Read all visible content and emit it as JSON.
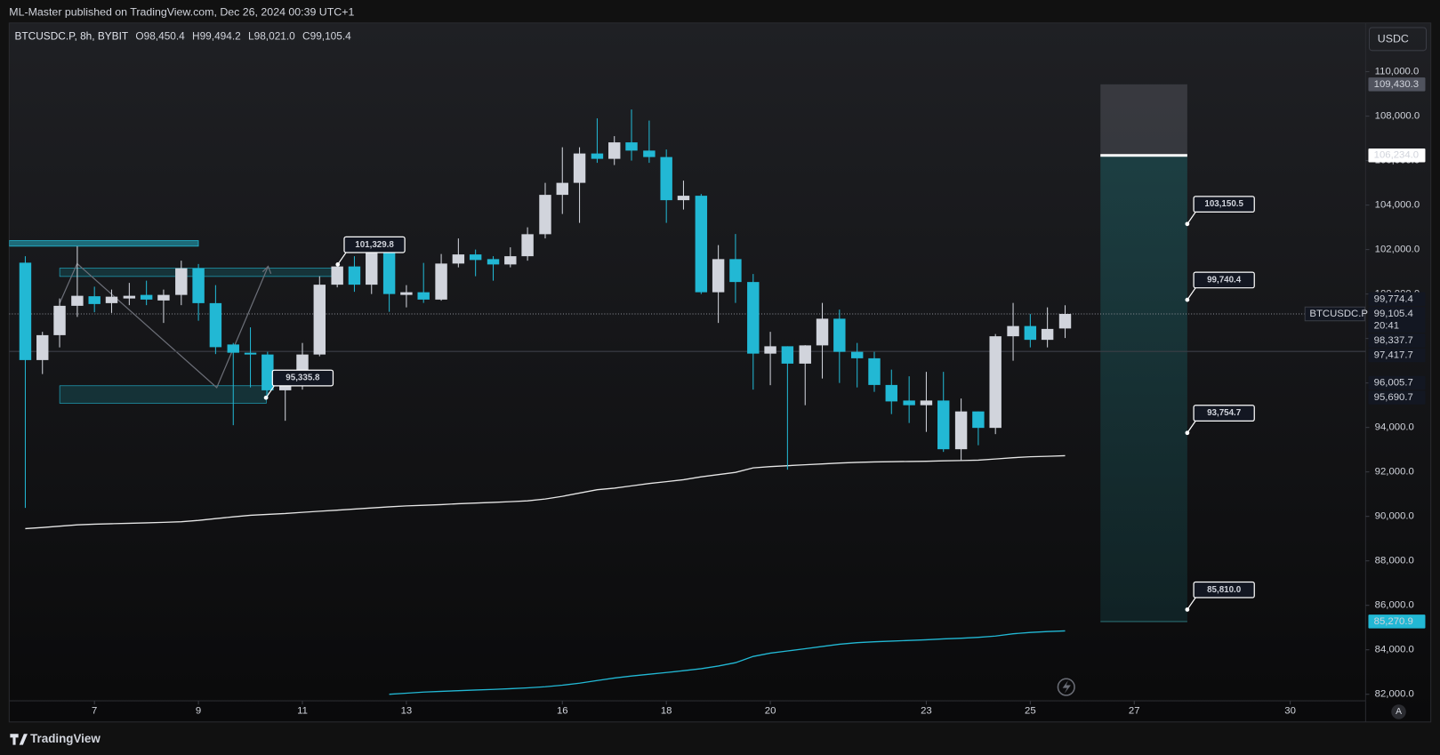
{
  "header": {
    "published": "ML-Master published on TradingView.com, Dec 26, 2024 00:39 UTC+1",
    "symbol": "BTCUSDC.P, 8h, BYBIT",
    "ohlc": [
      "O98,450.4",
      "H99,494.2",
      "L98,021.0",
      "C99,105.4"
    ]
  },
  "currency": "USDC",
  "footer": "TradingView",
  "auto_button": "A",
  "chart_data": {
    "type": "candlestick",
    "symbol_tag": "BTCUSDC.P",
    "up_color": "#d1d4dc",
    "down_color": "#22b8d4",
    "x": [
      5.67,
      6,
      6.33,
      6.67,
      7,
      7.33,
      7.67,
      8,
      8.33,
      8.67,
      9,
      9.33,
      9.67,
      10,
      10.33,
      10.67,
      11,
      11.33,
      11.67,
      12,
      12.33,
      12.67,
      13,
      13.33,
      13.67,
      14,
      14.33,
      14.67,
      15,
      15.33,
      15.67,
      16,
      16.33,
      16.67,
      17,
      17.33,
      17.67,
      18,
      18.33,
      18.67,
      19,
      19.33,
      19.67,
      20,
      20.33,
      20.67,
      21,
      21.33,
      21.67,
      22,
      22.33,
      22.67,
      23,
      23.33,
      23.67,
      24,
      24.33,
      24.67,
      25,
      25.33,
      25.67
    ],
    "open": [
      101409,
      97030,
      98150,
      99470,
      99900,
      99590,
      99800,
      99960,
      99710,
      99960,
      101160,
      99590,
      97730,
      97360,
      97280,
      95670,
      96080,
      97280,
      100420,
      101240,
      100420,
      101860,
      99960,
      100080,
      99750,
      101370,
      101780,
      101570,
      101330,
      101700,
      102690,
      104460,
      105000,
      106320,
      106080,
      106820,
      106450,
      106160,
      104220,
      104420,
      100080,
      101570,
      100540,
      97320,
      97650,
      96870,
      97690,
      98890,
      97400,
      97110,
      95910,
      95210,
      95000,
      95210,
      93020,
      94720,
      93980,
      98100,
      98560,
      97940,
      98450.4
    ],
    "high": [
      101700,
      98300,
      99800,
      102150,
      100330,
      100200,
      100500,
      100600,
      100200,
      101500,
      101350,
      100400,
      97800,
      98500,
      97400,
      96300,
      97800,
      100800,
      101330,
      101700,
      102300,
      102200,
      100400,
      101400,
      101800,
      102500,
      102000,
      101700,
      102100,
      103000,
      105000,
      106600,
      106600,
      107900,
      107100,
      108300,
      107800,
      106500,
      105100,
      104500,
      102200,
      102700,
      100900,
      98300,
      97650,
      97700,
      99600,
      99300,
      97800,
      97400,
      96600,
      96300,
      96500,
      96500,
      95300,
      94720,
      98200,
      99600,
      99100,
      99400,
      99494.2
    ],
    "low": [
      90380,
      96400,
      97600,
      98970,
      99180,
      99150,
      99500,
      99500,
      98700,
      99500,
      98800,
      97300,
      94100,
      95800,
      95300,
      94300,
      95700,
      97200,
      100300,
      100100,
      100000,
      99200,
      99400,
      99600,
      99700,
      101200,
      100800,
      100600,
      101200,
      101500,
      102500,
      103600,
      103200,
      105900,
      105800,
      106000,
      105900,
      103200,
      103800,
      100000,
      98700,
      99600,
      95700,
      95900,
      92100,
      95000,
      96200,
      96000,
      95800,
      95600,
      94600,
      94200,
      93800,
      92900,
      92500,
      93200,
      93700,
      97000,
      97600,
      97600,
      98021.0
    ],
    "close": [
      97030,
      98150,
      99470,
      99920,
      99550,
      99880,
      99920,
      99750,
      99960,
      101160,
      99590,
      97610,
      97360,
      97280,
      95670,
      96080,
      97280,
      100420,
      101240,
      100420,
      101860,
      100000,
      100080,
      99750,
      101370,
      101780,
      101530,
      101330,
      101700,
      102690,
      104460,
      105000,
      106320,
      106080,
      106820,
      106450,
      106160,
      104220,
      104420,
      100080,
      101570,
      100540,
      97320,
      97650,
      96870,
      97690,
      98890,
      97400,
      97110,
      95910,
      95170,
      95000,
      95210,
      93020,
      94720,
      93980,
      98100,
      98560,
      97940,
      98430,
      99105.4
    ],
    "lines": [
      {
        "color": "#e6e6e6",
        "values": [
          89450,
          89500,
          89560,
          89620,
          89650,
          89670,
          89690,
          89710,
          89730,
          89760,
          89820,
          89900,
          89980,
          90050,
          90090,
          90130,
          90180,
          90230,
          90280,
          90330,
          90380,
          90430,
          90470,
          90500,
          90530,
          90570,
          90600,
          90630,
          90660,
          90700,
          90780,
          90900,
          91050,
          91200,
          91270,
          91370,
          91480,
          91560,
          91650,
          91780,
          91880,
          91980,
          92180,
          92240,
          92280,
          92320,
          92360,
          92400,
          92430,
          92450,
          92460,
          92470,
          92480,
          92500,
          92510,
          92530,
          92580,
          92640,
          92680,
          92700,
          92730
        ]
      },
      {
        "color": "#22b8d4",
        "values": [
          null,
          null,
          null,
          null,
          null,
          null,
          null,
          null,
          null,
          null,
          null,
          null,
          null,
          null,
          null,
          null,
          null,
          null,
          null,
          null,
          null,
          82000,
          82050,
          82100,
          82130,
          82160,
          82190,
          82220,
          82250,
          82290,
          82340,
          82410,
          82500,
          82620,
          82730,
          82820,
          82900,
          82980,
          83060,
          83150,
          83270,
          83420,
          83700,
          83850,
          83950,
          84050,
          84150,
          84250,
          84320,
          84360,
          84390,
          84420,
          84450,
          84490,
          84520,
          84560,
          84620,
          84720,
          84780,
          84820,
          84850
        ]
      }
    ],
    "xlim": [
      5.36,
      31.45
    ],
    "xticks": [
      7,
      9,
      11,
      13,
      16,
      18,
      20,
      23,
      25,
      27,
      30
    ],
    "ylim": [
      81706,
      112190
    ],
    "yticks": [
      {
        "value": 82000,
        "label": "82,000.0"
      },
      {
        "value": 84000,
        "label": "84,000.0"
      },
      {
        "value": 86000,
        "label": "86,000.0"
      },
      {
        "value": 88000,
        "label": "88,000.0"
      },
      {
        "value": 90000,
        "label": "90,000.0"
      },
      {
        "value": 92000,
        "label": "92,000.0"
      },
      {
        "value": 94000,
        "label": "94,000.0"
      },
      {
        "value": 96000,
        "label": "96,000.0"
      },
      {
        "value": 98000,
        "label": "98,000.0"
      },
      {
        "value": 100000,
        "label": "100,000.0"
      },
      {
        "value": 102000,
        "label": "102,000.0"
      },
      {
        "value": 104000,
        "label": "104,000.0"
      },
      {
        "value": 106000,
        "label": "106,000.0"
      },
      {
        "value": 108000,
        "label": "108,000.0"
      },
      {
        "value": 110000,
        "label": "110,000.0"
      }
    ],
    "grid": false,
    "position": {
      "x": [
        26.35,
        28.02
      ],
      "top": 109430.3,
      "stop": 106234.0,
      "target": 85270.9
    },
    "annotations": [
      {
        "value": 101329.8,
        "label": "101,329.8",
        "x": 11.68
      },
      {
        "value": 95335.8,
        "label": "95,335.8",
        "x": 10.3
      },
      {
        "value": 103150.5,
        "label": "103,150.5",
        "x": 28.02
      },
      {
        "value": 99740.4,
        "label": "99,740.4",
        "x": 28.02
      },
      {
        "value": 93754.7,
        "label": "93,754.7",
        "x": 28.02
      },
      {
        "value": 85810.0,
        "label": "85,810.0",
        "x": 28.02
      }
    ],
    "price_tags": [
      {
        "value": 109430.3,
        "label": "109,430.3",
        "color": "#50535e",
        "text_color": "#d1d4dc"
      },
      {
        "value": 106234.0,
        "label": "106,234.0",
        "color": "#ffffff",
        "text_color": "#131722"
      },
      {
        "value": 99774.4,
        "label": "99,774.4",
        "color": "#131722",
        "text_color": "#ffffff"
      },
      {
        "value": 99105.4,
        "label": "99,105.4",
        "time": "20:41",
        "color": "#131722",
        "text_color": "#ffffff",
        "line": "dotted"
      },
      {
        "value": 98337.7,
        "label": "98,337.7",
        "color": "#131722",
        "text_color": "#ffffff"
      },
      {
        "value": 97417.7,
        "label": "97,417.7",
        "color": "#131722",
        "text_color": "#ffffff",
        "line": "solid"
      },
      {
        "value": 96005.7,
        "label": "96,005.7",
        "color": "#131722",
        "text_color": "#ffffff"
      },
      {
        "value": 95690.7,
        "label": "95,690.7",
        "color": "#131722",
        "text_color": "#ffffff"
      },
      {
        "value": 85270.9,
        "label": "85,270.9",
        "color": "#22b8d4",
        "text_color": "#131722"
      }
    ]
  }
}
